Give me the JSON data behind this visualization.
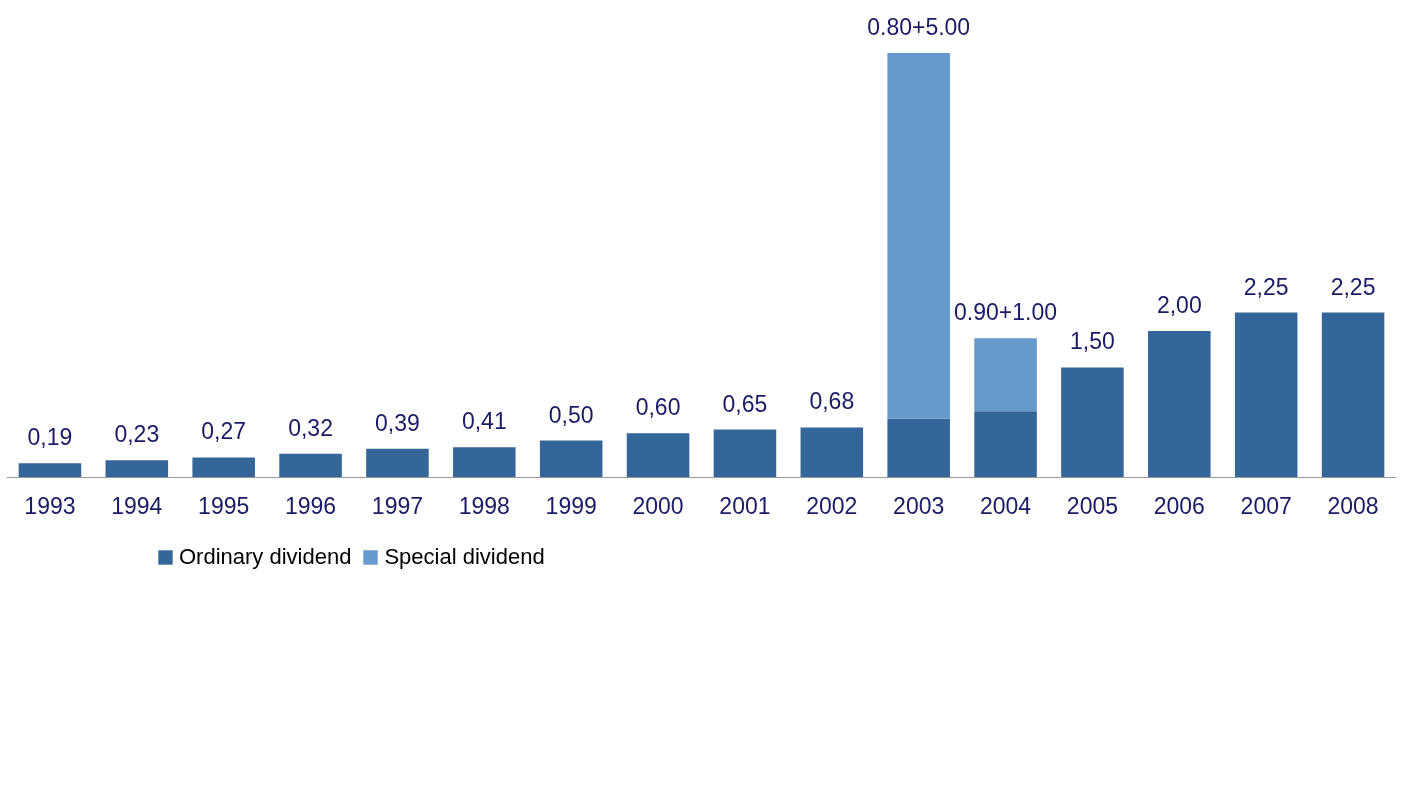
{
  "chart_data": {
    "type": "bar",
    "stacked": true,
    "legend": "bottom",
    "grid": false,
    "categories": [
      "1993",
      "1994",
      "1995",
      "1996",
      "1997",
      "1998",
      "1999",
      "2000",
      "2001",
      "2002",
      "2003",
      "2004",
      "2005",
      "2006",
      "2007",
      "2008"
    ],
    "series": [
      {
        "name": "Ordinary dividend",
        "color": "#346699",
        "values": [
          0.19,
          0.23,
          0.27,
          0.32,
          0.39,
          0.41,
          0.5,
          0.6,
          0.65,
          0.68,
          0.8,
          0.9,
          1.5,
          2.0,
          2.25,
          2.25
        ],
        "value_labels": [
          "0,19",
          "0,23",
          "0,27",
          "0,32",
          "0,39",
          "0,41",
          "0,50",
          "0,60",
          "0,65",
          "0,68",
          null,
          null,
          "1,50",
          "2,00",
          "2,25",
          "2,25"
        ]
      },
      {
        "name": "Special dividend",
        "color": "#6699cc",
        "values": [
          null,
          null,
          null,
          null,
          null,
          null,
          null,
          null,
          null,
          null,
          5.0,
          1.0,
          null,
          null,
          null,
          null
        ]
      }
    ],
    "totals": [
      null,
      null,
      null,
      null,
      null,
      null,
      null,
      null,
      null,
      null,
      "0.80+5.00",
      "0.90+1.00",
      null,
      null,
      null,
      null
    ]
  }
}
